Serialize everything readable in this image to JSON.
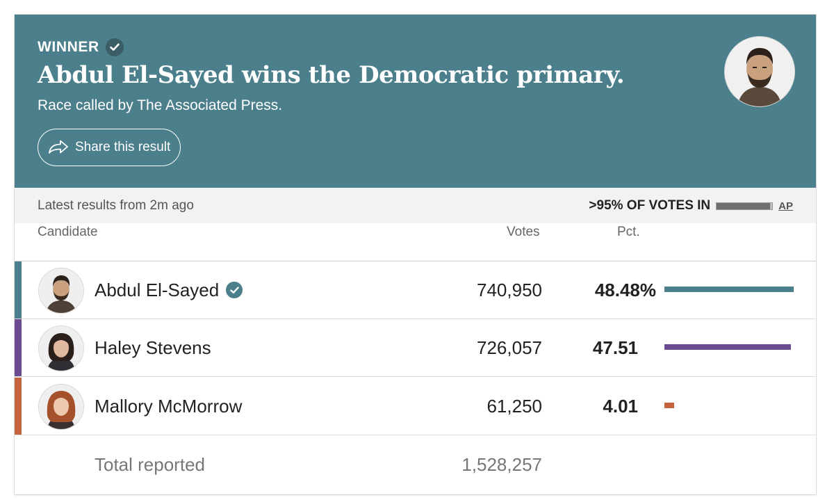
{
  "banner": {
    "winner_label": "WINNER",
    "headline": "Abdul El-Sayed wins the Democratic primary.",
    "subline": "Race called by The Associated Press.",
    "share_label": "Share this result",
    "background_color": "#4b7f8b"
  },
  "status": {
    "latest": "Latest results from 2m ago",
    "votes_in": ">95% OF VOTES IN",
    "reporting_fraction": 0.96,
    "source_link": "AP"
  },
  "table": {
    "headers": {
      "candidate": "Candidate",
      "votes": "Votes",
      "pct": "Pct."
    },
    "rows": [
      {
        "name": "Abdul El-Sayed",
        "votes": "740,950",
        "pct": "48.48%",
        "pct_value": 48.48,
        "color": "#4b7f8b",
        "winner": true
      },
      {
        "name": "Haley Stevens",
        "votes": "726,057",
        "pct": "47.51",
        "pct_value": 47.51,
        "color": "#6b4c91",
        "winner": false
      },
      {
        "name": "Mallory McMorrow",
        "votes": "61,250",
        "pct": "4.01",
        "pct_value": 4.01,
        "color": "#c4633d",
        "winner": false
      }
    ],
    "total_label": "Total reported",
    "total_votes": "1,528,257"
  },
  "icons": {
    "winner_check": "check-circle-icon",
    "share": "share-arrow-icon",
    "candidate_check": "check-circle-icon"
  }
}
